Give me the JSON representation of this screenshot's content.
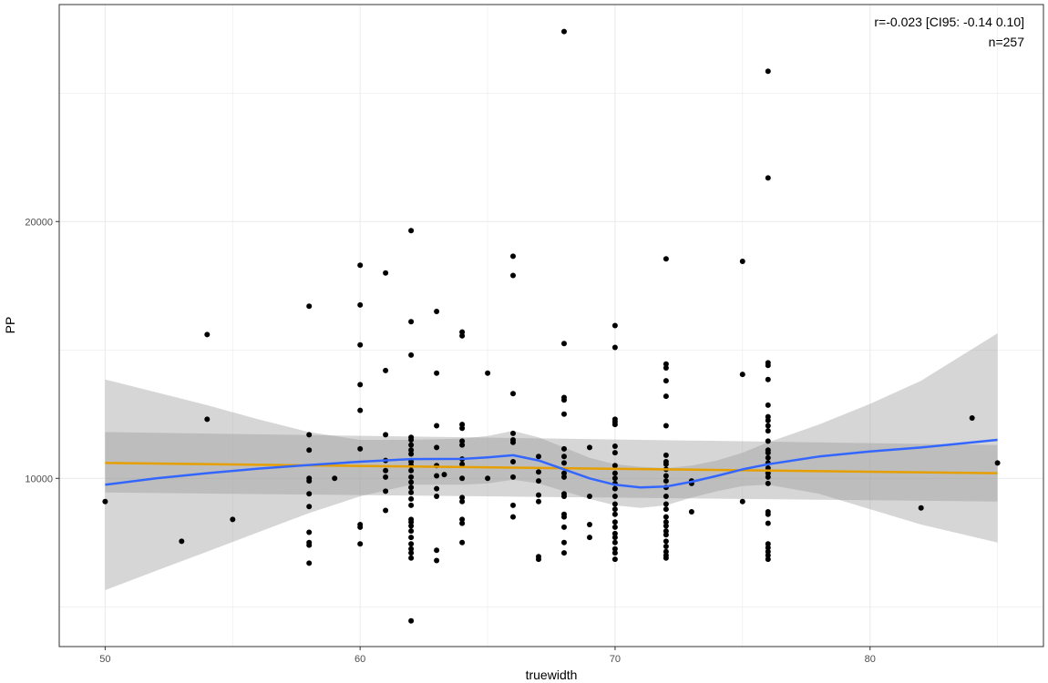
{
  "chart_data": {
    "type": "scatter",
    "xlabel": "truewidth",
    "ylabel": "PP",
    "xlim": [
      48.2,
      86.8
    ],
    "ylim": [
      3450,
      28450
    ],
    "xticks": [
      50,
      60,
      70,
      80
    ],
    "xtick_labels": [
      "50",
      "60",
      "70",
      "80"
    ],
    "yticks": [
      10000,
      20000
    ],
    "ytick_labels": [
      "10000",
      "20000"
    ],
    "x_minor_gridlines": [
      55,
      65,
      75,
      85
    ],
    "y_minor_gridlines": [
      5000,
      15000,
      25000
    ],
    "grid": true,
    "annotation": {
      "line1": "r=-0.023 [CI95: -0.14 0.10]",
      "line2": "n=257"
    },
    "colors": {
      "points": "#000000",
      "loess_line": "#3366FF",
      "linear_fit": "#E69F00",
      "ribbon": "#999999",
      "grid": "#ebebeb",
      "panel_border": "#333333"
    },
    "points": [
      [
        50,
        9100
      ],
      [
        53,
        7550
      ],
      [
        54,
        15600
      ],
      [
        54,
        12300
      ],
      [
        55,
        8400
      ],
      [
        58,
        16700
      ],
      [
        58,
        11700
      ],
      [
        58,
        11100
      ],
      [
        58,
        10000
      ],
      [
        58,
        9900
      ],
      [
        58,
        9400
      ],
      [
        58,
        8900
      ],
      [
        58,
        7900
      ],
      [
        58,
        7500
      ],
      [
        58,
        7400
      ],
      [
        58,
        6700
      ],
      [
        59,
        10000
      ],
      [
        60,
        18300
      ],
      [
        60,
        16750
      ],
      [
        60,
        15200
      ],
      [
        60,
        13650
      ],
      [
        60,
        12650
      ],
      [
        60,
        11150
      ],
      [
        60,
        8200
      ],
      [
        60,
        8100
      ],
      [
        60,
        7450
      ],
      [
        61,
        18000
      ],
      [
        61,
        14200
      ],
      [
        61,
        11700
      ],
      [
        61,
        10700
      ],
      [
        61,
        10300
      ],
      [
        61,
        10050
      ],
      [
        61,
        9500
      ],
      [
        61,
        8750
      ],
      [
        62,
        19650
      ],
      [
        62,
        16100
      ],
      [
        62,
        14800
      ],
      [
        62,
        11600
      ],
      [
        62,
        11500
      ],
      [
        62,
        11300
      ],
      [
        62,
        11100
      ],
      [
        62,
        10950
      ],
      [
        62,
        10650
      ],
      [
        62,
        10500
      ],
      [
        62,
        10300
      ],
      [
        62,
        10050
      ],
      [
        62,
        9850
      ],
      [
        62,
        9650
      ],
      [
        62,
        9450
      ],
      [
        62,
        9200
      ],
      [
        62,
        8950
      ],
      [
        62,
        8400
      ],
      [
        62,
        8300
      ],
      [
        62,
        8150
      ],
      [
        62,
        7950
      ],
      [
        62,
        7700
      ],
      [
        62,
        7450
      ],
      [
        62,
        7250
      ],
      [
        62,
        7100
      ],
      [
        62,
        6900
      ],
      [
        62,
        4450
      ],
      [
        63,
        16500
      ],
      [
        63,
        14100
      ],
      [
        63,
        12050
      ],
      [
        63,
        11200
      ],
      [
        63,
        10500
      ],
      [
        63,
        10100
      ],
      [
        63,
        9600
      ],
      [
        63,
        9300
      ],
      [
        63,
        7200
      ],
      [
        63,
        6800
      ],
      [
        63.3,
        10150
      ],
      [
        64,
        15700
      ],
      [
        64,
        15550
      ],
      [
        64,
        12100
      ],
      [
        64,
        11950
      ],
      [
        64,
        11450
      ],
      [
        64,
        11300
      ],
      [
        64,
        10750
      ],
      [
        64,
        10550
      ],
      [
        64,
        10000
      ],
      [
        64,
        9250
      ],
      [
        64,
        9100
      ],
      [
        64,
        8400
      ],
      [
        64,
        8250
      ],
      [
        64,
        7500
      ],
      [
        65,
        14100
      ],
      [
        65,
        10000
      ],
      [
        66,
        18650
      ],
      [
        66,
        17900
      ],
      [
        66,
        13300
      ],
      [
        66,
        11750
      ],
      [
        66,
        11500
      ],
      [
        66,
        11400
      ],
      [
        66,
        10650
      ],
      [
        66,
        10050
      ],
      [
        66,
        8950
      ],
      [
        66,
        8500
      ],
      [
        67,
        10850
      ],
      [
        67,
        10250
      ],
      [
        67,
        9900
      ],
      [
        67,
        9350
      ],
      [
        67,
        9100
      ],
      [
        67,
        6950
      ],
      [
        67,
        6850
      ],
      [
        68,
        27400
      ],
      [
        68,
        15250
      ],
      [
        68,
        13150
      ],
      [
        68,
        13050
      ],
      [
        68,
        12500
      ],
      [
        68,
        11150
      ],
      [
        68,
        10850
      ],
      [
        68,
        10600
      ],
      [
        68,
        10200
      ],
      [
        68,
        10050
      ],
      [
        68,
        9400
      ],
      [
        68,
        9300
      ],
      [
        68,
        8600
      ],
      [
        68,
        8500
      ],
      [
        68,
        8100
      ],
      [
        68,
        7500
      ],
      [
        68,
        7100
      ],
      [
        69,
        11200
      ],
      [
        69,
        9300
      ],
      [
        69,
        8200
      ],
      [
        69,
        7700
      ],
      [
        70,
        15950
      ],
      [
        70,
        15100
      ],
      [
        70,
        12300
      ],
      [
        70,
        12200
      ],
      [
        70,
        12100
      ],
      [
        70,
        11250
      ],
      [
        70,
        11000
      ],
      [
        70,
        10500
      ],
      [
        70,
        10200
      ],
      [
        70,
        10000
      ],
      [
        70,
        9800
      ],
      [
        70,
        9600
      ],
      [
        70,
        9300
      ],
      [
        70,
        9000
      ],
      [
        70,
        8800
      ],
      [
        70,
        8600
      ],
      [
        70,
        8300
      ],
      [
        70,
        8100
      ],
      [
        70,
        7850
      ],
      [
        70,
        7700
      ],
      [
        70,
        7500
      ],
      [
        70,
        7250
      ],
      [
        70,
        7100
      ],
      [
        70,
        6850
      ],
      [
        72,
        18550
      ],
      [
        72,
        14450
      ],
      [
        72,
        14300
      ],
      [
        72,
        13800
      ],
      [
        72,
        13200
      ],
      [
        72,
        12050
      ],
      [
        72,
        10900
      ],
      [
        72,
        10650
      ],
      [
        72,
        10550
      ],
      [
        72,
        10350
      ],
      [
        72,
        10100
      ],
      [
        72,
        9900
      ],
      [
        72,
        9650
      ],
      [
        72,
        9300
      ],
      [
        72,
        9000
      ],
      [
        72,
        8800
      ],
      [
        72,
        8500
      ],
      [
        72,
        8300
      ],
      [
        72,
        8150
      ],
      [
        72,
        7950
      ],
      [
        72,
        7800
      ],
      [
        72,
        7550
      ],
      [
        72,
        7350
      ],
      [
        72,
        7150
      ],
      [
        72,
        7000
      ],
      [
        72,
        6900
      ],
      [
        73,
        9900
      ],
      [
        73,
        9800
      ],
      [
        73,
        8700
      ],
      [
        75,
        18450
      ],
      [
        75,
        14050
      ],
      [
        75,
        9100
      ],
      [
        76,
        25850
      ],
      [
        76,
        21700
      ],
      [
        76,
        14500
      ],
      [
        76,
        14400
      ],
      [
        76,
        13850
      ],
      [
        76,
        12850
      ],
      [
        76,
        12400
      ],
      [
        76,
        12250
      ],
      [
        76,
        12050
      ],
      [
        76,
        11850
      ],
      [
        76,
        11450
      ],
      [
        76,
        11100
      ],
      [
        76,
        11000
      ],
      [
        76,
        10800
      ],
      [
        76,
        10600
      ],
      [
        76,
        10400
      ],
      [
        76,
        10200
      ],
      [
        76,
        10050
      ],
      [
        76,
        9800
      ],
      [
        76,
        8700
      ],
      [
        76,
        8600
      ],
      [
        76,
        8250
      ],
      [
        76,
        7450
      ],
      [
        76,
        7300
      ],
      [
        76,
        7150
      ],
      [
        76,
        7000
      ],
      [
        76,
        6850
      ],
      [
        82,
        8850
      ],
      [
        84,
        12350
      ],
      [
        85,
        10600
      ]
    ],
    "linear_fit": {
      "x": [
        50,
        85
      ],
      "y": [
        10600,
        10200
      ],
      "ci_lower": [
        9450,
        9100
      ],
      "ci_upper": [
        11800,
        11300
      ]
    },
    "loess_fit": {
      "x": [
        50,
        52,
        54,
        56,
        58,
        60,
        62,
        64,
        65,
        66,
        67,
        68,
        69,
        70,
        71,
        72,
        73,
        74,
        75,
        76,
        78,
        80,
        82,
        85
      ],
      "y": [
        9750,
        10000,
        10200,
        10380,
        10520,
        10650,
        10750,
        10760,
        10820,
        10900,
        10700,
        10350,
        10000,
        9750,
        9650,
        9680,
        9870,
        10100,
        10350,
        10550,
        10850,
        11050,
        11200,
        11500
      ],
      "ci_lower": [
        5650,
        6400,
        7150,
        7900,
        8650,
        9300,
        9750,
        9750,
        9800,
        9950,
        9800,
        9500,
        9200,
        8950,
        8850,
        8950,
        9250,
        9500,
        9700,
        9750,
        9400,
        8800,
        8200,
        7500
      ],
      "ci_upper": [
        13850,
        13350,
        12850,
        12300,
        11800,
        11500,
        11500,
        11550,
        11650,
        11850,
        11600,
        11200,
        10800,
        10550,
        10450,
        10400,
        10500,
        10700,
        11000,
        11400,
        12100,
        12900,
        13800,
        15650
      ]
    }
  }
}
